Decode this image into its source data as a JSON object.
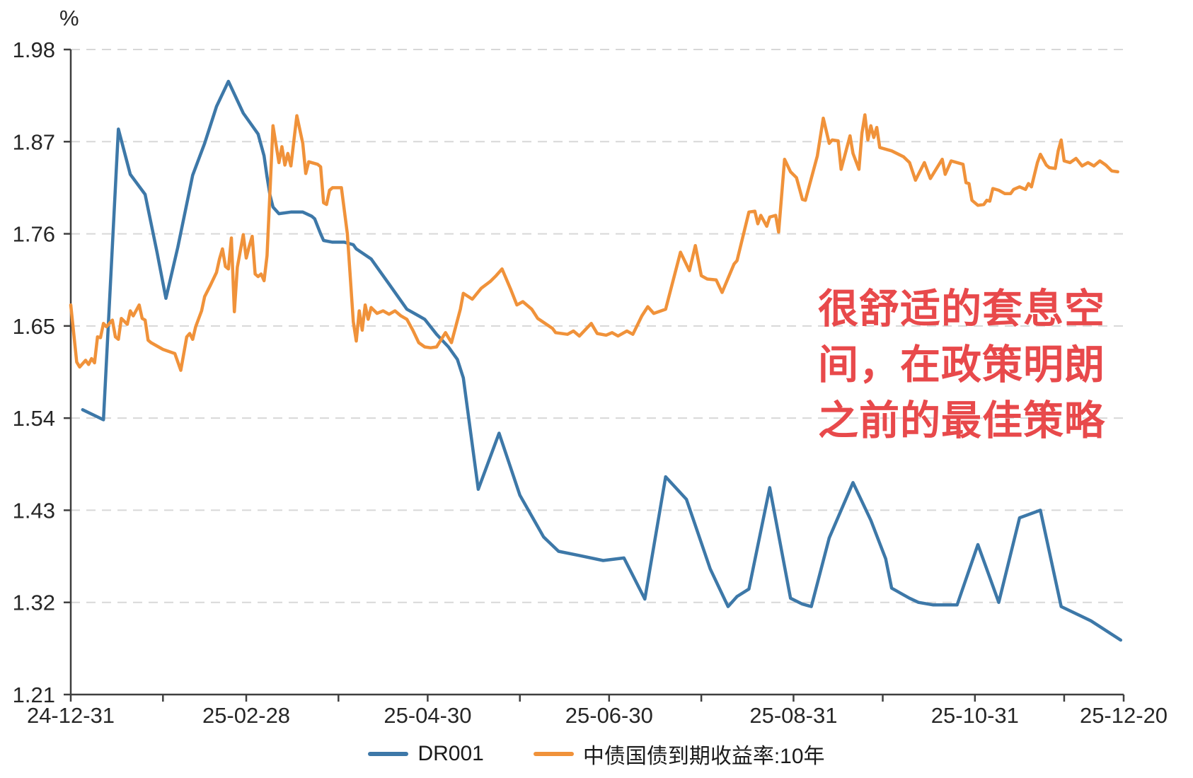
{
  "chart_data": {
    "type": "line",
    "title": "",
    "ylabel": "%",
    "ylim": [
      1.21,
      1.98
    ],
    "yticks": [
      1.21,
      1.32,
      1.43,
      1.54,
      1.65,
      1.76,
      1.87,
      1.98
    ],
    "grid": "horizontal-dashed",
    "legend_position": "bottom-center",
    "x_axis": {
      "unit": "days-since-24-12-31",
      "domain_days": [
        0,
        354
      ],
      "major_ticks": [
        {
          "day": 0,
          "label": "24-12-31"
        },
        {
          "day": 59,
          "label": "25-02-28"
        },
        {
          "day": 120,
          "label": "25-04-30"
        },
        {
          "day": 181,
          "label": "25-06-30"
        },
        {
          "day": 243,
          "label": "25-08-31"
        },
        {
          "day": 304,
          "label": "25-10-31"
        },
        {
          "day": 354,
          "label": "25-12-20"
        }
      ],
      "minor_ticks": [
        31,
        90,
        151,
        212,
        273,
        334
      ]
    },
    "colors": {
      "grid": "#D8D8D8",
      "axis": "#3F3F3F",
      "tick_text": "#262626"
    },
    "series": [
      {
        "name": "DR001",
        "color": "#3D78A8",
        "points": [
          [
            4,
            1.55
          ],
          [
            11,
            1.538
          ],
          [
            16,
            1.885
          ],
          [
            20,
            1.831
          ],
          [
            25,
            1.807
          ],
          [
            29,
            1.738
          ],
          [
            32,
            1.683
          ],
          [
            36,
            1.744
          ],
          [
            41,
            1.83
          ],
          [
            45,
            1.868
          ],
          [
            49,
            1.912
          ],
          [
            53,
            1.942
          ],
          [
            58,
            1.904
          ],
          [
            63,
            1.879
          ],
          [
            65,
            1.853
          ],
          [
            66,
            1.828
          ],
          [
            67,
            1.806
          ],
          [
            68,
            1.792
          ],
          [
            70,
            1.784
          ],
          [
            74,
            1.786
          ],
          [
            78,
            1.786
          ],
          [
            81,
            1.781
          ],
          [
            82,
            1.778
          ],
          [
            84,
            1.76
          ],
          [
            85,
            1.752
          ],
          [
            88,
            1.75
          ],
          [
            92,
            1.75
          ],
          [
            95,
            1.747
          ],
          [
            96,
            1.742
          ],
          [
            101,
            1.73
          ],
          [
            107,
            1.7
          ],
          [
            113,
            1.67
          ],
          [
            117,
            1.662
          ],
          [
            119,
            1.658
          ],
          [
            123,
            1.64
          ],
          [
            127,
            1.625
          ],
          [
            130,
            1.61
          ],
          [
            132,
            1.588
          ],
          [
            137,
            1.455
          ],
          [
            144,
            1.522
          ],
          [
            151,
            1.448
          ],
          [
            159,
            1.398
          ],
          [
            164,
            1.381
          ],
          [
            171,
            1.376
          ],
          [
            179,
            1.37
          ],
          [
            186,
            1.373
          ],
          [
            193,
            1.324
          ],
          [
            200,
            1.47
          ],
          [
            207,
            1.443
          ],
          [
            215,
            1.36
          ],
          [
            221,
            1.315
          ],
          [
            224,
            1.327
          ],
          [
            228,
            1.336
          ],
          [
            235,
            1.457
          ],
          [
            242,
            1.325
          ],
          [
            246,
            1.318
          ],
          [
            249,
            1.315
          ],
          [
            255,
            1.397
          ],
          [
            263,
            1.463
          ],
          [
            269,
            1.418
          ],
          [
            274,
            1.372
          ],
          [
            276,
            1.337
          ],
          [
            282,
            1.325
          ],
          [
            285,
            1.32
          ],
          [
            290,
            1.317
          ],
          [
            298,
            1.317
          ],
          [
            305,
            1.389
          ],
          [
            312,
            1.32
          ],
          [
            319,
            1.421
          ],
          [
            326,
            1.43
          ],
          [
            333,
            1.315
          ],
          [
            343,
            1.298
          ],
          [
            353,
            1.275
          ]
        ]
      },
      {
        "name": "中债国债到期收益率:10年",
        "color": "#F0923A",
        "points": [
          [
            0,
            1.675
          ],
          [
            2,
            1.607
          ],
          [
            3,
            1.601
          ],
          [
            5,
            1.609
          ],
          [
            6,
            1.604
          ],
          [
            7,
            1.611
          ],
          [
            8,
            1.606
          ],
          [
            9,
            1.637
          ],
          [
            10,
            1.636
          ],
          [
            11,
            1.653
          ],
          [
            12,
            1.649
          ],
          [
            14,
            1.657
          ],
          [
            15,
            1.637
          ],
          [
            16,
            1.634
          ],
          [
            17,
            1.659
          ],
          [
            19,
            1.652
          ],
          [
            20,
            1.668
          ],
          [
            21,
            1.662
          ],
          [
            23,
            1.675
          ],
          [
            24,
            1.659
          ],
          [
            25,
            1.657
          ],
          [
            26,
            1.633
          ],
          [
            27,
            1.63
          ],
          [
            31,
            1.622
          ],
          [
            35,
            1.617
          ],
          [
            37,
            1.597
          ],
          [
            39,
            1.637
          ],
          [
            40,
            1.641
          ],
          [
            41,
            1.634
          ],
          [
            42,
            1.649
          ],
          [
            44,
            1.668
          ],
          [
            45,
            1.685
          ],
          [
            47,
            1.699
          ],
          [
            49,
            1.714
          ],
          [
            50,
            1.73
          ],
          [
            51,
            1.742
          ],
          [
            52,
            1.721
          ],
          [
            53,
            1.718
          ],
          [
            54,
            1.755
          ],
          [
            55,
            1.667
          ],
          [
            56,
            1.72
          ],
          [
            58,
            1.759
          ],
          [
            59,
            1.731
          ],
          [
            60,
            1.745
          ],
          [
            61,
            1.757
          ],
          [
            62,
            1.712
          ],
          [
            63,
            1.709
          ],
          [
            64,
            1.712
          ],
          [
            65,
            1.704
          ],
          [
            66,
            1.734
          ],
          [
            68,
            1.889
          ],
          [
            70,
            1.845
          ],
          [
            71,
            1.864
          ],
          [
            72,
            1.842
          ],
          [
            73,
            1.856
          ],
          [
            74,
            1.841
          ],
          [
            76,
            1.901
          ],
          [
            78,
            1.868
          ],
          [
            79,
            1.832
          ],
          [
            80,
            1.846
          ],
          [
            81,
            1.845
          ],
          [
            83,
            1.843
          ],
          [
            84,
            1.84
          ],
          [
            85,
            1.797
          ],
          [
            86,
            1.795
          ],
          [
            87,
            1.812
          ],
          [
            88,
            1.815
          ],
          [
            91,
            1.815
          ],
          [
            93,
            1.76
          ],
          [
            95,
            1.655
          ],
          [
            96,
            1.632
          ],
          [
            97,
            1.668
          ],
          [
            98,
            1.645
          ],
          [
            99,
            1.675
          ],
          [
            100,
            1.658
          ],
          [
            101,
            1.672
          ],
          [
            103,
            1.665
          ],
          [
            105,
            1.668
          ],
          [
            107,
            1.664
          ],
          [
            109,
            1.668
          ],
          [
            111,
            1.662
          ],
          [
            113,
            1.658
          ],
          [
            115,
            1.645
          ],
          [
            117,
            1.63
          ],
          [
            119,
            1.625
          ],
          [
            121,
            1.624
          ],
          [
            123,
            1.625
          ],
          [
            126,
            1.642
          ],
          [
            128,
            1.63
          ],
          [
            131,
            1.67
          ],
          [
            132,
            1.689
          ],
          [
            135,
            1.682
          ],
          [
            138,
            1.695
          ],
          [
            141,
            1.703
          ],
          [
            143,
            1.71
          ],
          [
            145,
            1.718
          ],
          [
            148,
            1.693
          ],
          [
            150,
            1.675
          ],
          [
            152,
            1.679
          ],
          [
            155,
            1.67
          ],
          [
            157,
            1.659
          ],
          [
            162,
            1.647
          ],
          [
            163,
            1.642
          ],
          [
            167,
            1.64
          ],
          [
            169,
            1.644
          ],
          [
            171,
            1.638
          ],
          [
            175,
            1.653
          ],
          [
            177,
            1.641
          ],
          [
            180,
            1.639
          ],
          [
            182,
            1.642
          ],
          [
            184,
            1.638
          ],
          [
            187,
            1.644
          ],
          [
            189,
            1.64
          ],
          [
            192,
            1.662
          ],
          [
            194,
            1.673
          ],
          [
            196,
            1.665
          ],
          [
            200,
            1.67
          ],
          [
            205,
            1.738
          ],
          [
            208,
            1.716
          ],
          [
            210,
            1.746
          ],
          [
            212,
            1.71
          ],
          [
            214,
            1.706
          ],
          [
            217,
            1.705
          ],
          [
            219,
            1.69
          ],
          [
            223,
            1.724
          ],
          [
            224,
            1.728
          ],
          [
            228,
            1.786
          ],
          [
            230,
            1.787
          ],
          [
            231,
            1.772
          ],
          [
            232,
            1.782
          ],
          [
            234,
            1.769
          ],
          [
            235,
            1.78
          ],
          [
            237,
            1.782
          ],
          [
            238,
            1.762
          ],
          [
            240,
            1.849
          ],
          [
            242,
            1.834
          ],
          [
            244,
            1.827
          ],
          [
            246,
            1.801
          ],
          [
            247,
            1.8
          ],
          [
            251,
            1.853
          ],
          [
            253,
            1.898
          ],
          [
            255,
            1.868
          ],
          [
            256,
            1.872
          ],
          [
            258,
            1.871
          ],
          [
            259,
            1.837
          ],
          [
            262,
            1.877
          ],
          [
            263,
            1.856
          ],
          [
            265,
            1.837
          ],
          [
            266,
            1.88
          ],
          [
            267,
            1.902
          ],
          [
            268,
            1.872
          ],
          [
            269,
            1.889
          ],
          [
            270,
            1.875
          ],
          [
            271,
            1.887
          ],
          [
            272,
            1.863
          ],
          [
            276,
            1.859
          ],
          [
            280,
            1.852
          ],
          [
            282,
            1.845
          ],
          [
            284,
            1.824
          ],
          [
            287,
            1.845
          ],
          [
            289,
            1.826
          ],
          [
            293,
            1.849
          ],
          [
            294,
            1.831
          ],
          [
            296,
            1.847
          ],
          [
            300,
            1.843
          ],
          [
            301,
            1.821
          ],
          [
            302,
            1.82
          ],
          [
            303,
            1.8
          ],
          [
            305,
            1.794
          ],
          [
            307,
            1.795
          ],
          [
            308,
            1.8
          ],
          [
            309,
            1.799
          ],
          [
            310,
            1.814
          ],
          [
            312,
            1.812
          ],
          [
            314,
            1.808
          ],
          [
            316,
            1.808
          ],
          [
            317,
            1.813
          ],
          [
            319,
            1.816
          ],
          [
            321,
            1.813
          ],
          [
            322,
            1.82
          ],
          [
            323,
            1.816
          ],
          [
            325,
            1.845
          ],
          [
            326,
            1.855
          ],
          [
            328,
            1.842
          ],
          [
            329,
            1.839
          ],
          [
            331,
            1.838
          ],
          [
            332,
            1.859
          ],
          [
            333,
            1.872
          ],
          [
            334,
            1.847
          ],
          [
            336,
            1.845
          ],
          [
            338,
            1.85
          ],
          [
            340,
            1.841
          ],
          [
            342,
            1.845
          ],
          [
            344,
            1.841
          ],
          [
            346,
            1.847
          ],
          [
            348,
            1.842
          ],
          [
            350,
            1.835
          ],
          [
            352,
            1.834
          ]
        ]
      }
    ]
  },
  "annotation": {
    "color": "#E8494B",
    "lines": [
      "很舒适的套息空",
      "间，在政策明朗",
      "之前的最佳策略"
    ]
  }
}
